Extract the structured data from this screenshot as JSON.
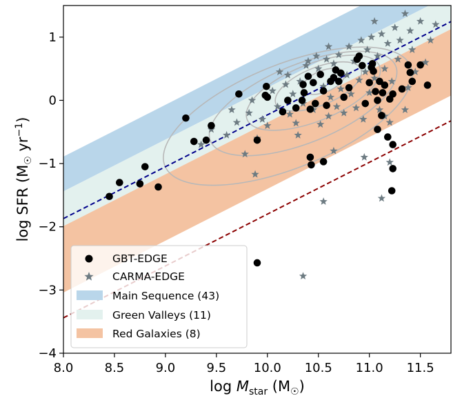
{
  "chart_data": {
    "type": "scatter",
    "xlabel": "log M_star (M_☉)",
    "ylabel": "log SFR (M_☉ yr^-1)",
    "xlabel_parts": [
      "log ",
      "M",
      "star",
      " (M",
      "☉",
      ")"
    ],
    "ylabel_parts": [
      "log SFR (M",
      "☉",
      " yr",
      "−1",
      ")"
    ],
    "xlim": [
      8.0,
      11.8
    ],
    "ylim": [
      -4.0,
      1.5
    ],
    "xticks": [
      8.0,
      8.5,
      9.0,
      9.5,
      10.0,
      10.5,
      11.0,
      11.5
    ],
    "xtick_labels": [
      "8.0",
      "8.5",
      "9.0",
      "9.5",
      "10.0",
      "10.5",
      "11.0",
      "11.5"
    ],
    "yticks": [
      1,
      0,
      -1,
      -2,
      -3,
      -4
    ],
    "ytick_labels": [
      "1",
      "0",
      "−1",
      "−2",
      "−3",
      "−4"
    ],
    "grid": false,
    "legend_position": "bottom-left",
    "bands": [
      {
        "name": "Main Sequence (43)",
        "color": "#b9d6ea",
        "slope": 0.82,
        "lower": -8.0,
        "upper": -7.45
      },
      {
        "name": "Green Valleys (11)",
        "color": "#e3f1ee",
        "slope": 0.82,
        "lower": -8.55,
        "upper": -8.0
      },
      {
        "name": "Red Galaxies (8)",
        "color": "#f4c3a2",
        "slope": 0.82,
        "lower": -9.6,
        "upper": -8.55
      }
    ],
    "lines": [
      {
        "name": "main-sequence-line",
        "color": "#00008b",
        "slope": 0.82,
        "intercept": -8.43
      },
      {
        "name": "red-sequence-line",
        "color": "#8b0000",
        "slope": 0.82,
        "intercept": -10.0
      }
    ],
    "series": [
      {
        "name": "GBT-EDGE",
        "marker": "circle",
        "color": "#000000",
        "points": [
          [
            8.45,
            -1.52
          ],
          [
            8.55,
            -1.3
          ],
          [
            8.75,
            -1.32
          ],
          [
            8.8,
            -1.05
          ],
          [
            8.93,
            -1.37
          ],
          [
            9.2,
            -0.28
          ],
          [
            9.28,
            -0.65
          ],
          [
            9.4,
            -0.63
          ],
          [
            9.45,
            -0.4
          ],
          [
            9.72,
            0.1
          ],
          [
            9.9,
            -0.63
          ],
          [
            9.98,
            0.08
          ],
          [
            9.99,
            0.22
          ],
          [
            10.0,
            0.05
          ],
          [
            10.15,
            -0.18
          ],
          [
            10.2,
            0.0
          ],
          [
            10.28,
            -0.12
          ],
          [
            10.34,
            0.0
          ],
          [
            10.35,
            0.25
          ],
          [
            10.36,
            0.12
          ],
          [
            10.4,
            0.38
          ],
          [
            10.42,
            -0.14
          ],
          [
            10.45,
            0.28
          ],
          [
            10.47,
            -0.05
          ],
          [
            10.52,
            0.41
          ],
          [
            10.55,
            0.15
          ],
          [
            10.58,
            -0.08
          ],
          [
            10.62,
            0.3
          ],
          [
            10.65,
            0.36
          ],
          [
            10.67,
            0.48
          ],
          [
            10.7,
            0.3
          ],
          [
            10.72,
            0.43
          ],
          [
            10.75,
            0.05
          ],
          [
            10.8,
            0.2
          ],
          [
            10.88,
            0.65
          ],
          [
            10.9,
            0.7
          ],
          [
            10.93,
            0.55
          ],
          [
            10.96,
            -0.05
          ],
          [
            11.0,
            0.28
          ],
          [
            11.02,
            0.52
          ],
          [
            11.03,
            0.58
          ],
          [
            11.04,
            0.46
          ],
          [
            11.06,
            0.14
          ],
          [
            11.08,
            0.0
          ],
          [
            11.08,
            -0.46
          ],
          [
            11.1,
            0.3
          ],
          [
            11.12,
            -0.24
          ],
          [
            11.13,
            0.12
          ],
          [
            11.15,
            0.24
          ],
          [
            11.18,
            -0.58
          ],
          [
            11.2,
            0.02
          ],
          [
            11.23,
            0.1
          ],
          [
            11.32,
            0.18
          ],
          [
            11.38,
            0.56
          ],
          [
            11.4,
            0.44
          ],
          [
            11.42,
            0.3
          ],
          [
            11.57,
            0.24
          ],
          [
            11.23,
            -0.7
          ],
          [
            11.23,
            -1.08
          ],
          [
            10.42,
            -0.9
          ],
          [
            10.43,
            -1.02
          ],
          [
            10.55,
            -0.97
          ],
          [
            11.22,
            -1.43
          ],
          [
            9.9,
            -2.57
          ],
          [
            11.5,
            0.56
          ]
        ]
      },
      {
        "name": "CARMA-EDGE",
        "marker": "star",
        "color": "#6d7b82",
        "points": [
          [
            9.35,
            -0.7
          ],
          [
            9.45,
            -0.46
          ],
          [
            9.6,
            -0.55
          ],
          [
            9.7,
            -0.35
          ],
          [
            9.78,
            -0.85
          ],
          [
            9.82,
            -0.2
          ],
          [
            9.85,
            0.0
          ],
          [
            9.9,
            -0.6
          ],
          [
            9.88,
            -1.17
          ],
          [
            9.95,
            -0.3
          ],
          [
            10.0,
            -0.4
          ],
          [
            10.05,
            0.15
          ],
          [
            10.1,
            -0.1
          ],
          [
            10.12,
            0.45
          ],
          [
            10.18,
            0.25
          ],
          [
            10.22,
            -0.22
          ],
          [
            10.25,
            0.1
          ],
          [
            10.28,
            -0.36
          ],
          [
            10.32,
            0.3
          ],
          [
            10.35,
            -0.05
          ],
          [
            10.38,
            0.55
          ],
          [
            10.4,
            0.62
          ],
          [
            10.45,
            -0.15
          ],
          [
            10.48,
            0.7
          ],
          [
            10.5,
            0.5
          ],
          [
            10.52,
            -0.38
          ],
          [
            10.55,
            0.22
          ],
          [
            10.58,
            0.65
          ],
          [
            10.6,
            -0.25
          ],
          [
            10.62,
            0.05
          ],
          [
            10.65,
            0.58
          ],
          [
            10.68,
            -0.1
          ],
          [
            10.7,
            0.72
          ],
          [
            10.72,
            0.18
          ],
          [
            10.75,
            -0.2
          ],
          [
            10.78,
            0.4
          ],
          [
            10.8,
            0.85
          ],
          [
            10.82,
            0.1
          ],
          [
            10.85,
            0.62
          ],
          [
            10.87,
            -0.12
          ],
          [
            10.9,
            0.32
          ],
          [
            10.92,
            0.95
          ],
          [
            10.94,
            -0.3
          ],
          [
            10.96,
            0.45
          ],
          [
            10.98,
            0.8
          ],
          [
            11.0,
            0.12
          ],
          [
            11.02,
            1.0
          ],
          [
            11.05,
            0.35
          ],
          [
            11.08,
            0.7
          ],
          [
            11.1,
            -0.15
          ],
          [
            11.12,
            1.05
          ],
          [
            11.15,
            0.5
          ],
          [
            11.18,
            0.9
          ],
          [
            11.2,
            -0.35
          ],
          [
            11.22,
            0.3
          ],
          [
            11.25,
            1.15
          ],
          [
            11.28,
            0.65
          ],
          [
            11.3,
            0.95
          ],
          [
            11.35,
            1.37
          ],
          [
            11.38,
            0.2
          ],
          [
            11.4,
            1.1
          ],
          [
            11.42,
            0.8
          ],
          [
            11.45,
            0.45
          ],
          [
            11.5,
            1.25
          ],
          [
            11.55,
            0.6
          ],
          [
            11.6,
            0.95
          ],
          [
            11.65,
            1.2
          ],
          [
            11.35,
            -0.15
          ],
          [
            10.65,
            -0.8
          ],
          [
            10.95,
            -0.9
          ],
          [
            11.2,
            -0.98
          ],
          [
            11.15,
            -0.25
          ],
          [
            10.55,
            -1.6
          ],
          [
            11.12,
            -1.55
          ],
          [
            10.35,
            -2.78
          ],
          [
            10.2,
            0.4
          ],
          [
            10.6,
            0.85
          ],
          [
            11.05,
            1.25
          ],
          [
            9.65,
            -0.15
          ],
          [
            10.3,
            -0.55
          ]
        ]
      }
    ],
    "contours": [
      {
        "cx": 10.55,
        "cy": 0.3,
        "rx": 0.22,
        "ry": 0.17
      },
      {
        "cx": 10.5,
        "cy": 0.22,
        "rx": 0.45,
        "ry": 0.3
      },
      {
        "cx": 10.45,
        "cy": 0.12,
        "rx": 0.7,
        "ry": 0.45
      },
      {
        "cx": 10.35,
        "cy": -0.05,
        "rx": 0.98,
        "ry": 0.62
      },
      {
        "cx": 10.2,
        "cy": -0.25,
        "rx": 1.3,
        "ry": 0.82
      }
    ]
  }
}
